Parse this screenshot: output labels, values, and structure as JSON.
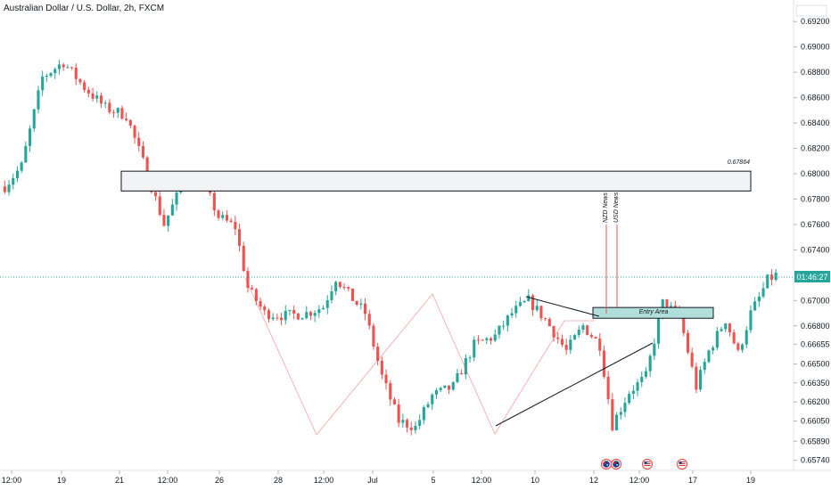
{
  "header": {
    "title": "Australian Dollar / U.S. Dollar, 2h, FXCM"
  },
  "price_scale": {
    "ticks": [
      "0.69200",
      "0.69000",
      "0.68800",
      "0.68600",
      "0.68400",
      "0.68200",
      "0.68000",
      "0.67800",
      "0.67600",
      "0.67400",
      "0.67000",
      "0.66800",
      "0.66655",
      "0.66500",
      "0.66350",
      "0.66200",
      "0.66050",
      "0.65890",
      "0.65740"
    ],
    "current_label": "01:46:27"
  },
  "time_axis": {
    "labels": [
      "12:00",
      "19",
      "21",
      "12:00",
      "26",
      "28",
      "12:00",
      "Jul",
      "5",
      "12:00",
      "10",
      "12",
      "12:00",
      "17",
      "19"
    ]
  },
  "colors": {
    "up": "#26a69a",
    "down": "#ef5350",
    "zone_fill": "#f2f3f5",
    "entry_fill": "#b2dfdb",
    "current_line": "#26a69a",
    "zigzag": "#ef5350",
    "news": "#ef5350"
  },
  "annotations": {
    "resistance_label": "0.67864",
    "entry_label": "Entry Area",
    "nzd_news": "NZD News",
    "usd_news": "USD News"
  },
  "event_icons": [
    "au-flag-icon",
    "nz-flag-icon",
    "us-flag-icon",
    "us-flag-icon"
  ],
  "chart_data": {
    "type": "candlestick",
    "title": "Australian Dollar / U.S. Dollar, 2h, FXCM",
    "xlabel": "",
    "ylabel": "",
    "ylim": [
      0.6566,
      0.693
    ],
    "grid": false,
    "current_price": 0.67185,
    "close_path": [
      [
        0,
        0.679
      ],
      [
        4,
        0.6806
      ],
      [
        9,
        0.6876
      ],
      [
        14,
        0.6888
      ],
      [
        19,
        0.6868
      ],
      [
        24,
        0.6852
      ],
      [
        29,
        0.6846
      ],
      [
        34,
        0.68
      ],
      [
        38,
        0.676
      ],
      [
        43,
        0.6796
      ],
      [
        48,
        0.6788
      ],
      [
        51,
        0.6766
      ],
      [
        55,
        0.6758
      ],
      [
        58,
        0.671
      ],
      [
        62,
        0.669
      ],
      [
        67,
        0.6688
      ],
      [
        72,
        0.669
      ],
      [
        76,
        0.6695
      ],
      [
        79,
        0.6718
      ],
      [
        82,
        0.6705
      ],
      [
        86,
        0.669
      ],
      [
        90,
        0.664
      ],
      [
        94,
        0.6605
      ],
      [
        98,
        0.66
      ],
      [
        102,
        0.6625
      ],
      [
        107,
        0.6632
      ],
      [
        112,
        0.6665
      ],
      [
        117,
        0.6672
      ],
      [
        121,
        0.669
      ],
      [
        125,
        0.67
      ],
      [
        129,
        0.6685
      ],
      [
        134,
        0.666
      ],
      [
        138,
        0.668
      ],
      [
        142,
        0.6665
      ],
      [
        145,
        0.6602
      ],
      [
        149,
        0.6628
      ],
      [
        153,
        0.664
      ],
      [
        157,
        0.6698
      ],
      [
        161,
        0.6688
      ],
      [
        165,
        0.6632
      ],
      [
        168,
        0.666
      ],
      [
        172,
        0.6685
      ],
      [
        175,
        0.6658
      ],
      [
        178,
        0.669
      ],
      [
        180,
        0.6702
      ],
      [
        182,
        0.6716
      ],
      [
        184,
        0.672
      ]
    ],
    "price_bounds": {
      "high": 0.69,
      "low": 0.6596
    },
    "resistance_zone": {
      "from": 0.67864,
      "to": 0.6802
    },
    "entry_zone": {
      "from": 0.6686,
      "to": 0.66945
    }
  }
}
